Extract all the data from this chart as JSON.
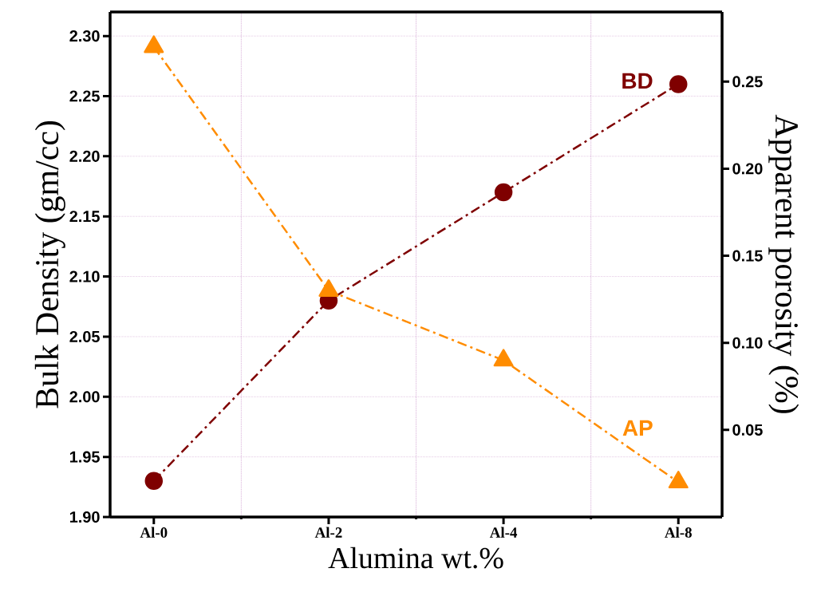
{
  "chart_data": {
    "type": "line",
    "xlabel": "Alumina wt.%",
    "ylabel": "Bulk Density (gm/cc)",
    "y2label": "Apparent porosity (%)",
    "categories": [
      "Al-0",
      "Al-2",
      "Al-4",
      "Al-8"
    ],
    "series": [
      {
        "name": "BD",
        "color": "#7f0000",
        "marker": "circle",
        "values": [
          1.93,
          2.08,
          2.17,
          2.26
        ]
      },
      {
        "name": "AP",
        "color": "#ff8c00",
        "marker": "triangle",
        "axis": "y2",
        "values": [
          0.27,
          0.13,
          0.09,
          0.02
        ]
      }
    ],
    "ylim": [
      1.9,
      2.32
    ],
    "yticks": [
      {
        "value": 1.9,
        "label": "1.90"
      },
      {
        "value": 1.95,
        "label": "1.95"
      },
      {
        "value": 2.0,
        "label": "2.00"
      },
      {
        "value": 2.05,
        "label": "2.05"
      },
      {
        "value": 2.1,
        "label": "2.10"
      },
      {
        "value": 2.15,
        "label": "2.15"
      },
      {
        "value": 2.2,
        "label": "2.20"
      },
      {
        "value": 2.25,
        "label": "2.25"
      },
      {
        "value": 2.3,
        "label": "2.30"
      }
    ],
    "y2lim": [
      0,
      0.29
    ],
    "y2ticks": [
      {
        "value": 0.05,
        "label": "0.05"
      },
      {
        "value": 0.1,
        "label": "0.10"
      },
      {
        "value": 0.15,
        "label": "0.15"
      },
      {
        "value": 0.2,
        "label": "0.20"
      },
      {
        "value": 0.25,
        "label": "0.25"
      }
    ],
    "grid": true,
    "line_style": "dashed"
  }
}
